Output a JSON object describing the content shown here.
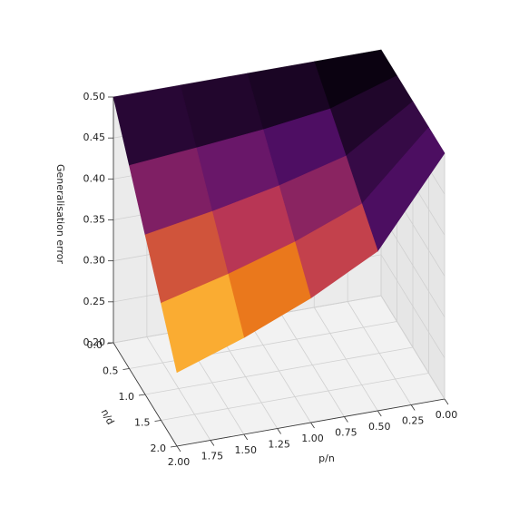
{
  "chart_data": {
    "type": "surface3d",
    "xlabel": "p/n",
    "ylabel": "n/d",
    "zlabel": "Generalisation error",
    "x": [
      0,
      0.5,
      1,
      1.5,
      2
    ],
    "y": [
      0,
      0.5,
      1,
      1.5,
      2
    ],
    "z": [
      [
        0.5,
        0.5,
        0.5,
        0.5,
        0.5
      ],
      [
        0.5,
        0.474,
        0.463,
        0.455,
        0.448
      ],
      [
        0.5,
        0.448,
        0.426,
        0.409,
        0.395
      ],
      [
        0.5,
        0.421,
        0.389,
        0.364,
        0.343
      ],
      [
        0.5,
        0.395,
        0.352,
        0.318,
        0.29
      ]
    ],
    "colormap": "inferno",
    "xlim": [
      0,
      2
    ],
    "ylim": [
      0,
      2
    ],
    "zlim": [
      0.2,
      0.5
    ],
    "xticks": [
      {
        "value": 0,
        "label": "0.00"
      },
      0.25,
      {
        "value": 0.5,
        "label": "0.50"
      },
      0.75,
      {
        "value": 1,
        "label": "1.00"
      },
      1.25,
      {
        "value": 1.5,
        "label": "1.50"
      },
      1.75,
      {
        "value": 2,
        "label": "2.00"
      }
    ],
    "yticks": [
      {
        "value": 0,
        "label": "0.0"
      },
      0.5,
      {
        "value": 1,
        "label": "1.0"
      },
      1.5,
      {
        "value": 2,
        "label": "2.0"
      }
    ],
    "zticks": [
      {
        "value": 0.2,
        "label": "0.20"
      },
      0.25,
      {
        "value": 0.3,
        "label": "0.30"
      },
      0.35,
      {
        "value": 0.4,
        "label": "0.40"
      },
      0.45,
      {
        "value": 0.5,
        "label": "0.50"
      }
    ],
    "grid": true
  }
}
